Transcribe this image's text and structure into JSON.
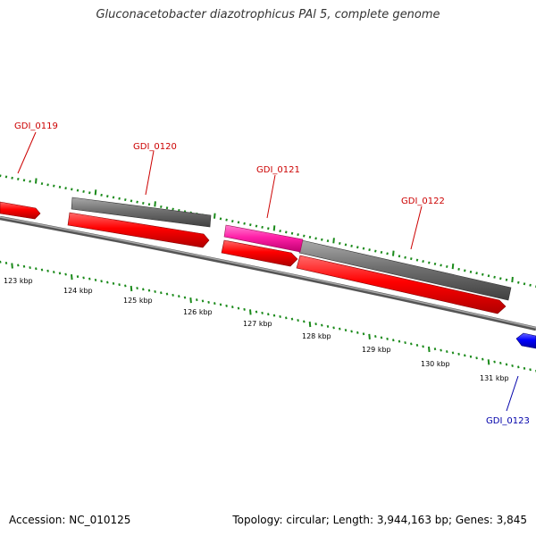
{
  "title": "Gluconacetobacter diazotrophicus PAl 5, complete genome",
  "footer": {
    "accession": "Accession: NC_010125",
    "summary": "Topology: circular; Length: 3,944,163 bp; Genes: 3,845"
  },
  "colors": {
    "forward_gene": "#ff0000",
    "reverse_gene": "#0000ff",
    "cds_grey": "#666666",
    "highlight": "#ff00a0",
    "tick": "#1a8a1a",
    "forward_label": "#cc0000",
    "reverse_label": "#0000aa"
  },
  "scale_labels": [
    "123 kbp",
    "124 kbp",
    "125 kbp",
    "126 kbp",
    "127 kbp",
    "128 kbp",
    "129 kbp",
    "130 kbp",
    "131 kbp"
  ],
  "gene_labels": [
    {
      "text": "GDI_0119",
      "strand": "forward"
    },
    {
      "text": "GDI_0120",
      "strand": "forward"
    },
    {
      "text": "GDI_0121",
      "strand": "forward"
    },
    {
      "text": "GDI_0122",
      "strand": "forward"
    },
    {
      "text": "GDI_0123",
      "strand": "reverse"
    }
  ]
}
